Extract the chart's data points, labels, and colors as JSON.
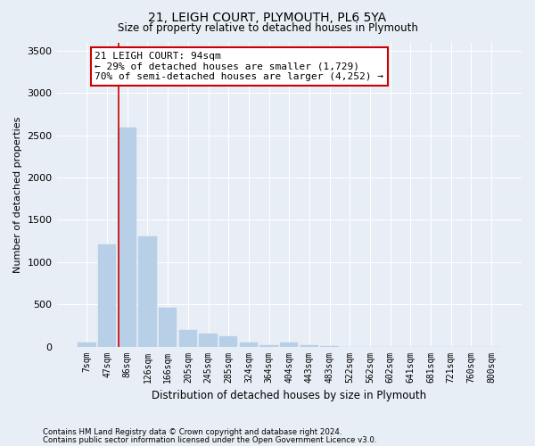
{
  "title1": "21, LEIGH COURT, PLYMOUTH, PL6 5YA",
  "title2": "Size of property relative to detached houses in Plymouth",
  "xlabel": "Distribution of detached houses by size in Plymouth",
  "ylabel": "Number of detached properties",
  "categories": [
    "7sqm",
    "47sqm",
    "86sqm",
    "126sqm",
    "166sqm",
    "205sqm",
    "245sqm",
    "285sqm",
    "324sqm",
    "364sqm",
    "404sqm",
    "443sqm",
    "483sqm",
    "522sqm",
    "562sqm",
    "602sqm",
    "641sqm",
    "681sqm",
    "721sqm",
    "760sqm",
    "800sqm"
  ],
  "values": [
    50,
    1210,
    2590,
    1300,
    465,
    200,
    155,
    120,
    50,
    20,
    50,
    20,
    5,
    0,
    0,
    0,
    0,
    0,
    0,
    0,
    0
  ],
  "ylim": [
    0,
    3600
  ],
  "yticks": [
    0,
    500,
    1000,
    1500,
    2000,
    2500,
    3000,
    3500
  ],
  "bar_color": "#b8cfe8",
  "bar_edge_color": "#b8cfe8",
  "bg_color": "#e8eef5",
  "grid_color": "#ffffff",
  "annotation_text_line1": "21 LEIGH COURT: 94sqm",
  "annotation_text_line2": "← 29% of detached houses are smaller (1,729)",
  "annotation_text_line3": "70% of semi-detached houses are larger (4,252) →",
  "annotation_box_facecolor": "#ffffff",
  "annotation_box_edgecolor": "#cc0000",
  "redline_color": "#cc0000",
  "footnote1": "Contains HM Land Registry data © Crown copyright and database right 2024.",
  "footnote2": "Contains public sector information licensed under the Open Government Licence v3.0."
}
